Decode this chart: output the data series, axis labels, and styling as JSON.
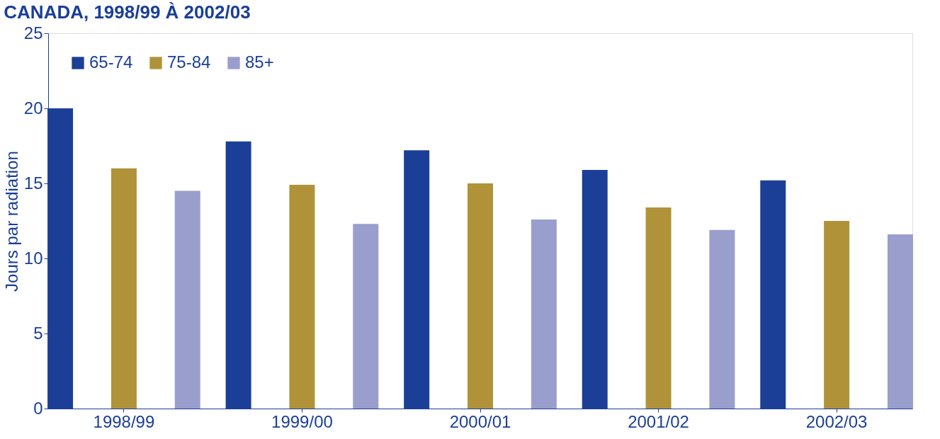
{
  "chart_data": {
    "type": "bar",
    "title": "CANADA, 1998/99 À 2002/03",
    "ylabel": "Jours par radiation",
    "categories": [
      "1998/99",
      "1999/00",
      "2000/01",
      "2001/02",
      "2002/03"
    ],
    "series": [
      {
        "name": "65-74",
        "color": "#1b3f97",
        "values": [
          20.0,
          17.8,
          17.2,
          15.9,
          15.2
        ]
      },
      {
        "name": "75-84",
        "color": "#b09339",
        "values": [
          16.0,
          14.9,
          15.0,
          13.4,
          12.5
        ]
      },
      {
        "name": "85+",
        "color": "#9a9ecc",
        "values": [
          14.5,
          12.3,
          12.6,
          11.9,
          11.6
        ]
      }
    ],
    "ylim": [
      0,
      25
    ],
    "yticks": [
      0,
      5,
      10,
      15,
      20,
      25
    ],
    "grid": false,
    "legend": "top left"
  }
}
